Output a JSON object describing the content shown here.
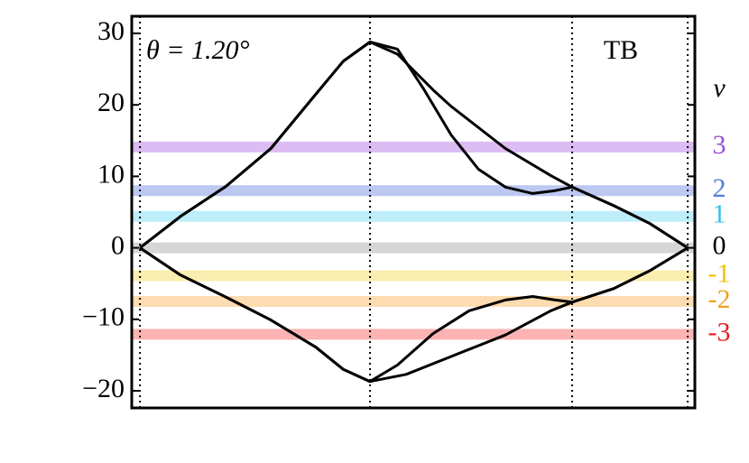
{
  "chart_data": {
    "type": "line",
    "annotations": [
      "θ = 1.20°",
      "TB"
    ],
    "level_title": "ν",
    "xlim": [
      -0.015,
      1.013
    ],
    "ylim": [
      -22.4,
      32.4
    ],
    "yticks": [
      {
        "value": -20,
        "label": "−20"
      },
      {
        "value": -10,
        "label": "−10"
      },
      0,
      10,
      20,
      30
    ],
    "vlines": [
      0,
      0.42,
      0.789,
      1
    ],
    "levels": [
      {
        "nu": "3",
        "value": 14.1,
        "color": "#dcbcf2",
        "label_color": "#9b4fd6"
      },
      {
        "nu": "2",
        "value": 8.0,
        "color": "#bcc8f2",
        "label_color": "#4f7fd6"
      },
      {
        "nu": "1",
        "value": 4.4,
        "color": "#bdeefa",
        "label_color": "#2ec4ec"
      },
      {
        "nu": "0",
        "value": 0,
        "color": "#d6d6d6",
        "label_color": "#000000"
      },
      {
        "nu": "-1",
        "value": -3.9,
        "color": "#fcedb0",
        "label_color": "#f2c200"
      },
      {
        "nu": "-2",
        "value": -7.5,
        "color": "#fcdcb0",
        "label_color": "#f0a020"
      },
      {
        "nu": "-3",
        "value": -12.1,
        "color": "#fbb3b3",
        "label_color": "#e82020"
      }
    ],
    "series": [
      {
        "color": "#000000",
        "x": [
          0,
          0.074,
          0.157,
          0.239,
          0.321,
          0.371,
          0.42,
          0.47,
          0.535,
          0.568,
          0.667,
          0.75,
          0.789,
          0.865,
          0.931,
          1
        ],
        "values": [
          0,
          4.4,
          8.6,
          13.9,
          21.5,
          26.1,
          28.8,
          27.1,
          22.1,
          19.8,
          13.9,
          10.1,
          8.5,
          5.9,
          3.4,
          0
        ]
      },
      {
        "color": "#000000",
        "x": [
          0,
          0.074,
          0.157,
          0.239,
          0.321,
          0.371,
          0.42,
          0.47,
          0.519,
          0.568,
          0.618,
          0.667,
          0.717,
          0.758,
          0.789,
          0.865,
          0.931,
          1
        ],
        "values": [
          0,
          4.4,
          8.6,
          13.9,
          21.5,
          26.1,
          28.8,
          27.8,
          22.1,
          15.8,
          11.0,
          8.5,
          7.6,
          8.0,
          8.5,
          5.9,
          3.4,
          0
        ]
      },
      {
        "color": "#000000",
        "x": [
          0,
          0.074,
          0.157,
          0.239,
          0.321,
          0.371,
          0.42,
          0.486,
          0.568,
          0.667,
          0.75,
          0.789,
          0.865,
          0.931,
          1
        ],
        "values": [
          0,
          -3.8,
          -6.9,
          -10.1,
          -13.9,
          -17.0,
          -18.7,
          -17.7,
          -15.2,
          -12.2,
          -8.8,
          -7.6,
          -5.7,
          -3.2,
          0
        ]
      },
      {
        "color": "#000000",
        "x": [
          0,
          0.074,
          0.157,
          0.239,
          0.321,
          0.371,
          0.42,
          0.47,
          0.535,
          0.601,
          0.667,
          0.717,
          0.758,
          0.789,
          0.865,
          0.931,
          1
        ],
        "values": [
          0,
          -3.8,
          -6.9,
          -10.1,
          -13.9,
          -17.0,
          -18.7,
          -16.4,
          -12.0,
          -8.8,
          -7.3,
          -6.8,
          -7.3,
          -7.6,
          -5.7,
          -3.2,
          0
        ]
      }
    ]
  }
}
